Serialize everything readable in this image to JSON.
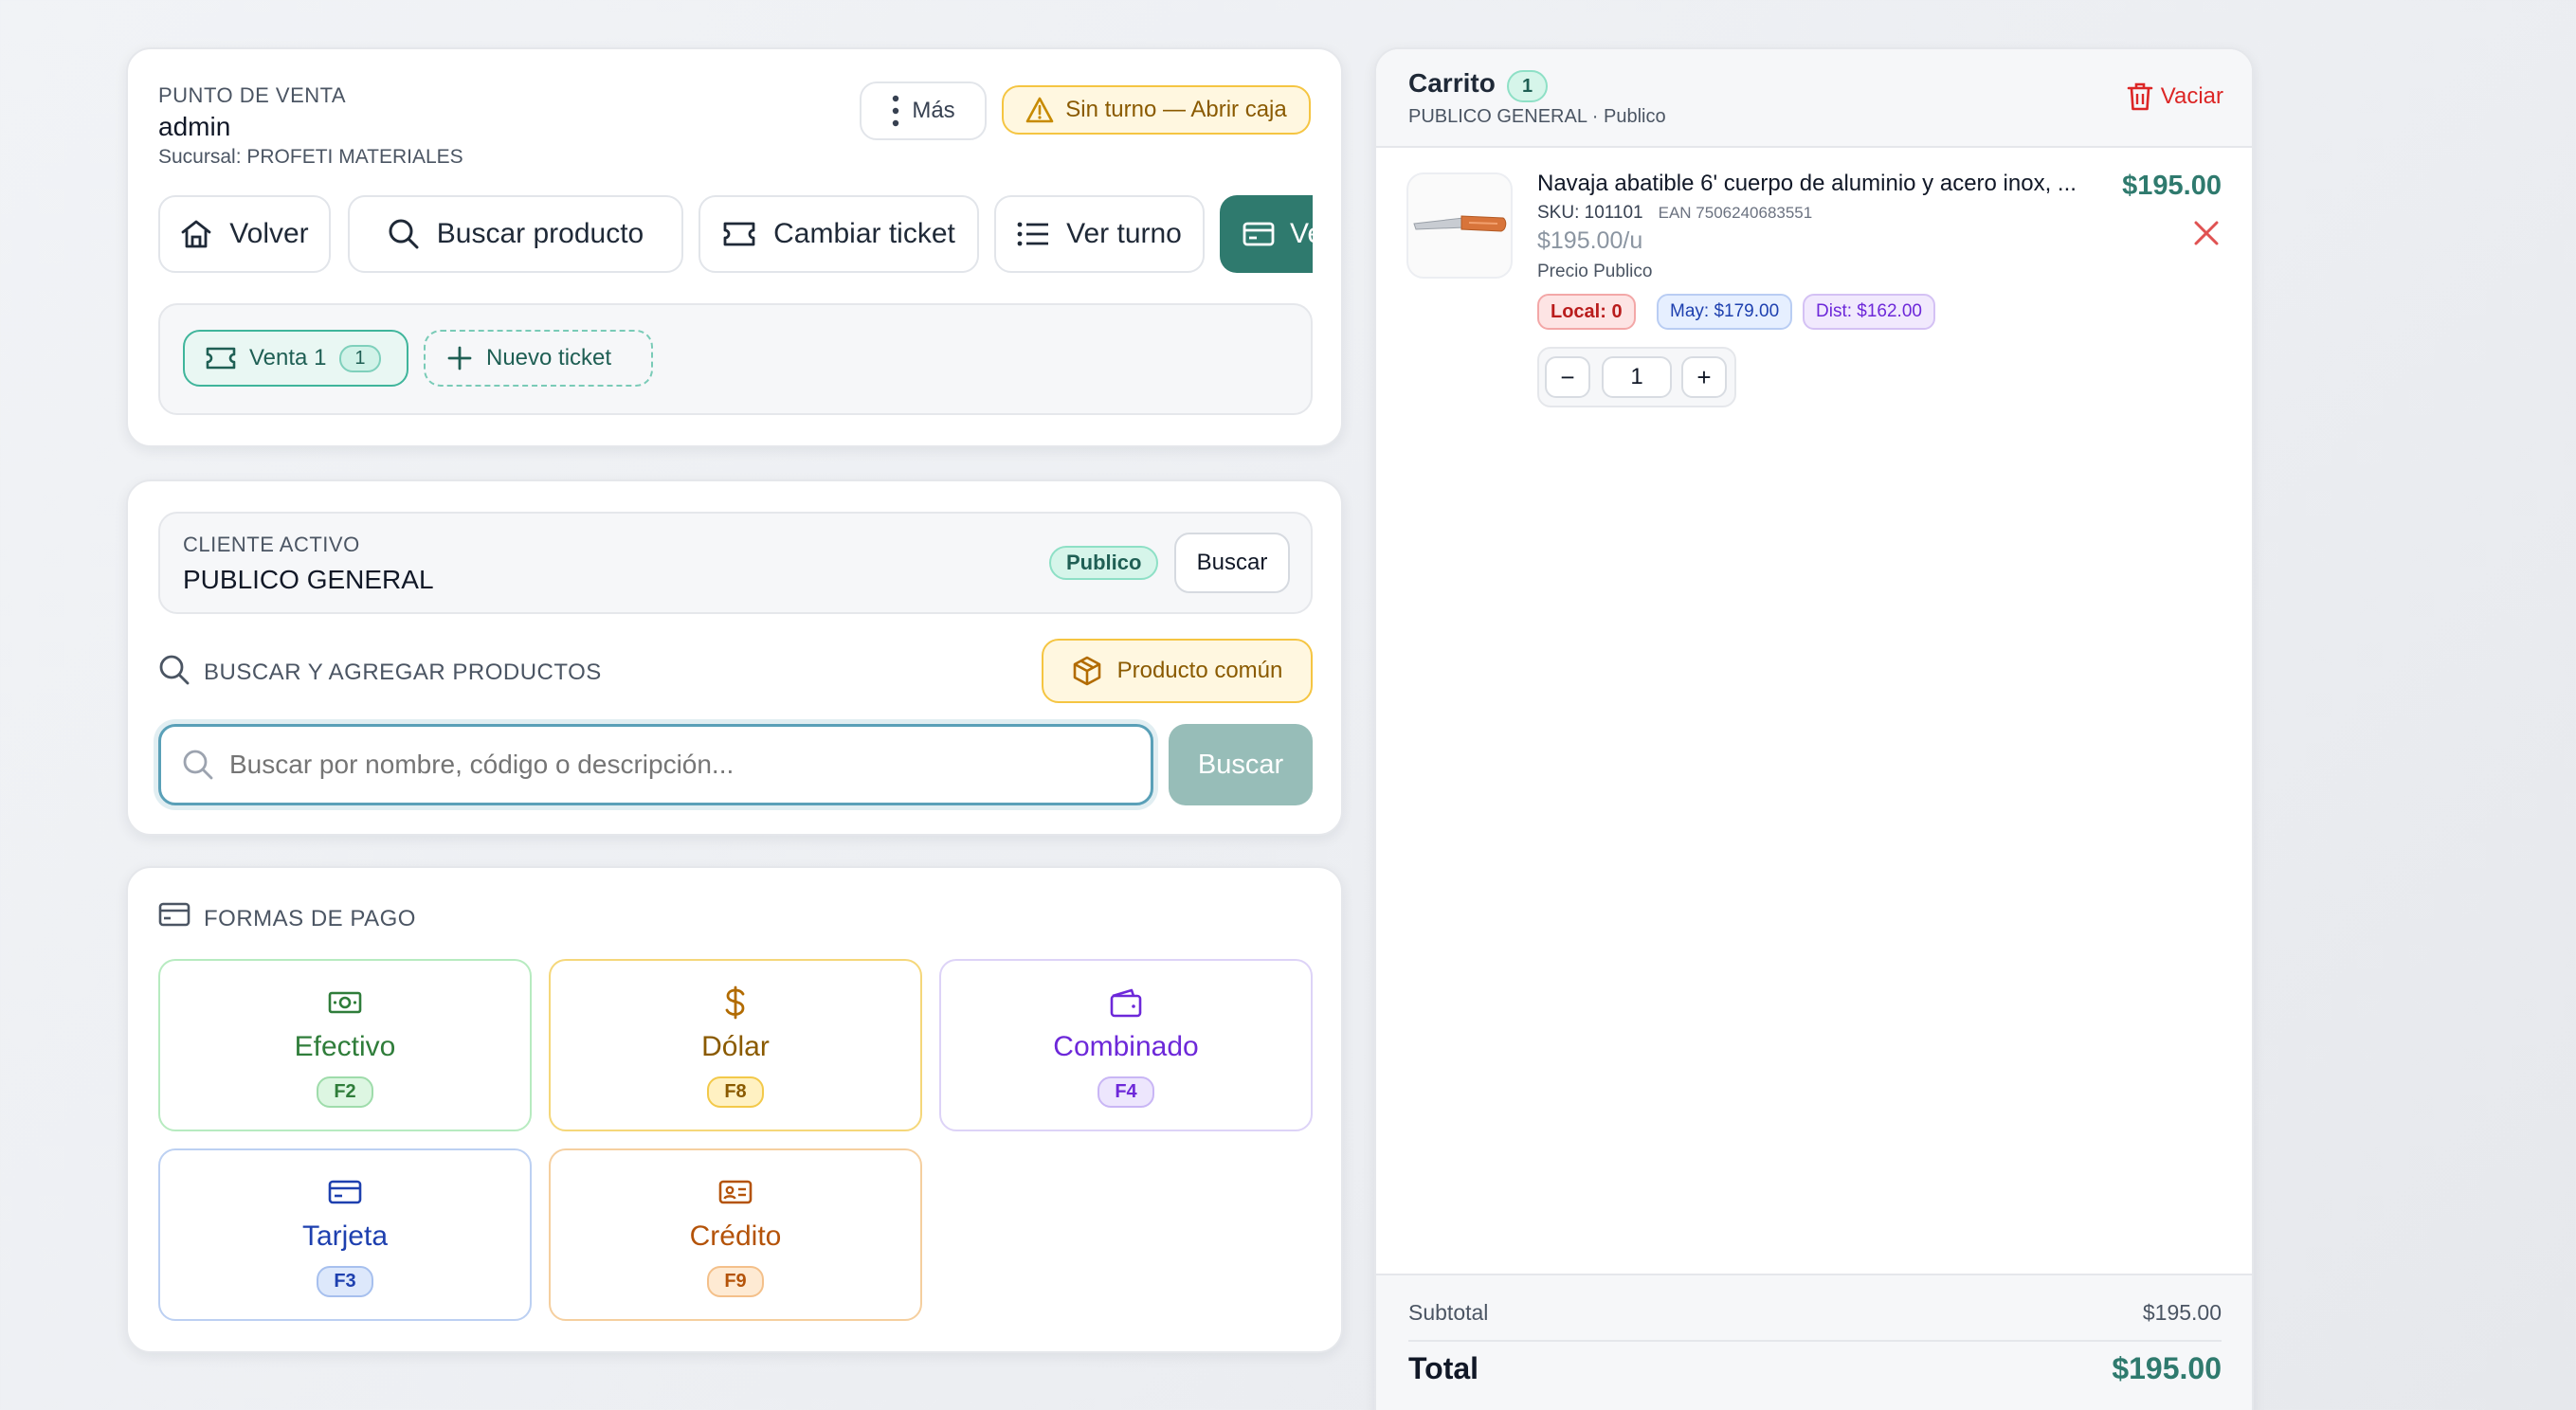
{
  "pos": {
    "section_label": "PUNTO DE VENTA",
    "user": "admin",
    "branch": "Sucursal: PROFETI MATERIALES",
    "more_label": "Más",
    "shift_warning": "Sin turno — Abrir caja",
    "actions": {
      "back": "Volver",
      "search_product": "Buscar producto",
      "change_ticket": "Cambiar ticket",
      "view_shift": "Ver turno",
      "sell": "Vender"
    },
    "tickets": [
      {
        "label": "Venta 1",
        "count": "1"
      }
    ],
    "new_ticket": "Nuevo ticket"
  },
  "client": {
    "section_label": "CLIENTE ACTIVO",
    "name": "PUBLICO GENERAL",
    "badge": "Publico",
    "search_label": "Buscar"
  },
  "product_search": {
    "section_label": "BUSCAR Y AGREGAR PRODUCTOS",
    "common_product": "Producto común",
    "placeholder": "Buscar por nombre, código o descripción...",
    "value": "",
    "button": "Buscar"
  },
  "payments": {
    "section_label": "FORMAS DE PAGO",
    "methods": [
      {
        "label": "Efectivo",
        "key": "F2",
        "icon": "cash-icon",
        "color": "#2f7d3a"
      },
      {
        "label": "Dólar",
        "key": "F8",
        "icon": "dollar-icon",
        "color": "#8a5a00"
      },
      {
        "label": "Combinado",
        "key": "F4",
        "icon": "wallet-icon",
        "color": "#6d28d9"
      },
      {
        "label": "Tarjeta",
        "key": "F3",
        "icon": "card-icon",
        "color": "#1e40af"
      },
      {
        "label": "Crédito",
        "key": "F9",
        "icon": "id-card-icon",
        "color": "#b45309"
      }
    ]
  },
  "cart": {
    "title": "Carrito",
    "count": "1",
    "client_line": "PUBLICO GENERAL · Publico",
    "clear_label": "Vaciar",
    "items": [
      {
        "name": "Navaja abatible 6' cuerpo de aluminio y acero inox, ...",
        "sku": "SKU: 101101",
        "ean": "EAN 7506240683551",
        "unit_price": "$195.00/u",
        "price_list": "Precio Publico",
        "total": "$195.00",
        "stock_local": "Local: 0",
        "price_may": "May: $179.00",
        "price_dist": "Dist: $162.00",
        "quantity": "1",
        "decrement": "−",
        "increment": "+"
      }
    ],
    "subtotal_label": "Subtotal",
    "subtotal_value": "$195.00",
    "total_label": "Total",
    "total_value": "$195.00"
  },
  "colors": {
    "accent": "#2f7a6e",
    "accent_disabled": "#97bdb8",
    "danger": "#dc2626",
    "warning_bg": "#fff7e0",
    "warning_border": "#f5c542"
  }
}
